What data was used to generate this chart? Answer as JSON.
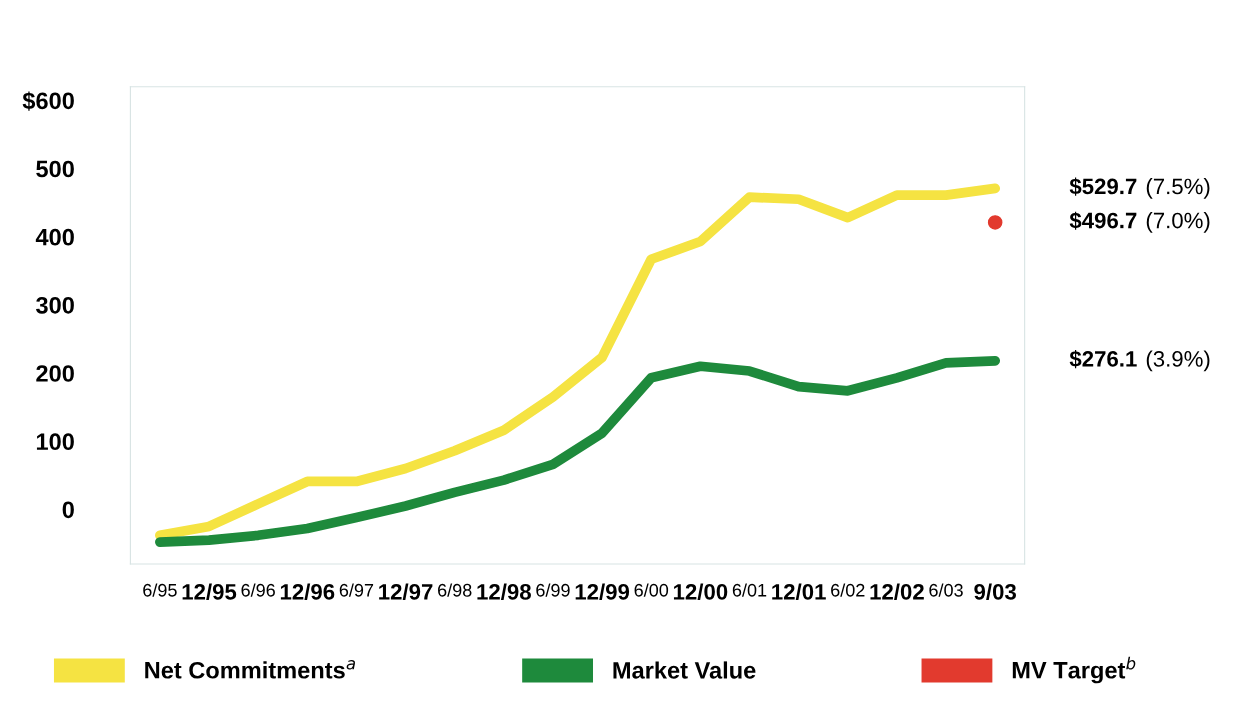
{
  "chart_data": {
    "type": "line",
    "categories": [
      "6/95",
      "12/95",
      "6/96",
      "12/96",
      "6/97",
      "12/97",
      "6/98",
      "12/98",
      "6/99",
      "12/99",
      "6/00",
      "12/00",
      "6/01",
      "12/01",
      "6/02",
      "12/02",
      "6/03",
      "9/03"
    ],
    "series": [
      {
        "name": "Net Commitments$^{a}$",
        "color": "#f5e342",
        "values": [
          -38,
          -25,
          8,
          41,
          41,
          60,
          86,
          116,
          165,
          223,
          367,
          393,
          458,
          455,
          428,
          461,
          461,
          471
        ]
      },
      {
        "name": "Market Value",
        "color": "#1e8a3c",
        "values": [
          -48,
          -45,
          -38,
          -28,
          -12,
          5,
          25,
          43,
          66,
          112,
          193,
          210,
          203,
          180,
          174,
          193,
          215,
          218
        ]
      },
      {
        "name": "MV Target$^{b}$",
        "color": "#e23a2e",
        "type": "scatter",
        "marker": "circle",
        "values": [
          null,
          null,
          null,
          null,
          null,
          null,
          null,
          null,
          null,
          null,
          null,
          null,
          null,
          null,
          null,
          null,
          null,
          421
        ]
      }
    ],
    "ylim": [
      -80,
      620
    ],
    "yticks": [
      {
        "value": 600,
        "label": "$600"
      },
      500,
      400,
      300,
      200,
      100,
      0
    ],
    "grid": false,
    "legend": "bottom",
    "marker": "none",
    "line_style": "solid",
    "annotations": [
      "$529.7",
      "(7.5%)",
      "$496.7",
      "(7.0%)",
      "$276.1",
      "(3.9%)"
    ]
  }
}
